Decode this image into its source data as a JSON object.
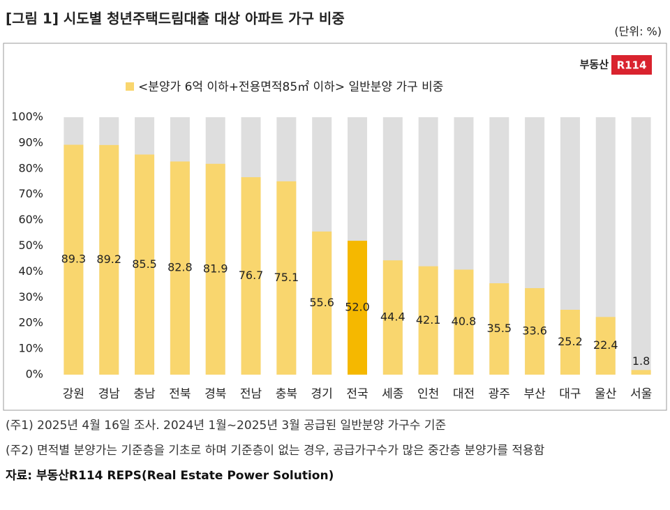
{
  "title": "[그림 1] 시도별 청년주택드림대출 대상 아파트 가구 비중",
  "unit": "(단위: %)",
  "logo": {
    "text": "부동산",
    "badge": "R114"
  },
  "chart_data": {
    "type": "bar",
    "categories": [
      "강원",
      "경남",
      "충남",
      "전북",
      "경북",
      "전남",
      "충북",
      "경기",
      "전국",
      "세종",
      "인천",
      "대전",
      "광주",
      "부산",
      "대구",
      "울산",
      "서울"
    ],
    "series": [
      {
        "name": "<분양가 6억 이하+전용면적85㎡ 이하> 일반분양 가구 비중",
        "color": "#f9d66e",
        "colors": [
          "#f9d66e",
          "#f9d66e",
          "#f9d66e",
          "#f9d66e",
          "#f9d66e",
          "#f9d66e",
          "#f9d66e",
          "#f9d66e",
          "#f5b800",
          "#f9d66e",
          "#f9d66e",
          "#f9d66e",
          "#f9d66e",
          "#f9d66e",
          "#f9d66e",
          "#f9d66e",
          "#f9d66e"
        ],
        "values": [
          89.3,
          89.2,
          85.5,
          82.8,
          81.9,
          76.7,
          75.1,
          55.6,
          52.0,
          44.4,
          42.1,
          40.8,
          35.5,
          33.6,
          25.2,
          22.4,
          1.8
        ],
        "value_labels": [
          "89.3",
          "89.2",
          "85.5",
          "82.8",
          "81.9",
          "76.7",
          "75.1",
          "55.6",
          "52.0",
          "44.4",
          "42.1",
          "40.8",
          "35.5",
          "33.6",
          "25.2",
          "22.4",
          "1.8"
        ]
      }
    ],
    "track_color": "#dedede",
    "ylim": [
      0,
      100
    ],
    "yticks": [
      {
        "value": 0,
        "label": "0%"
      },
      {
        "value": 10,
        "label": "10%"
      },
      {
        "value": 20,
        "label": "20%"
      },
      {
        "value": 30,
        "label": "30%"
      },
      {
        "value": 40,
        "label": "40%"
      },
      {
        "value": 50,
        "label": "50%"
      },
      {
        "value": 60,
        "label": "60%"
      },
      {
        "value": 70,
        "label": "70%"
      },
      {
        "value": 80,
        "label": "80%"
      },
      {
        "value": 90,
        "label": "90%"
      },
      {
        "value": 100,
        "label": "100%"
      }
    ],
    "grid": false
  },
  "notes": [
    "(주1) 2025년 4월 16일 조사. 2024년 1월~2025년 3월 공급된 일반분양 가구수 기준",
    "(주2) 면적별 분양가는 기준층을 기초로 하며 기준층이 없는 경우, 공급가구수가 많은 중간층 분양가를 적용함"
  ],
  "source": "자료: 부동산R114 REPS(Real Estate Power Solution)"
}
